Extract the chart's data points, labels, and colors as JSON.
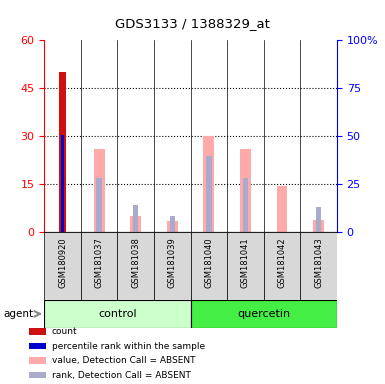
{
  "title": "GDS3133 / 1388329_at",
  "samples": [
    "GSM180920",
    "GSM181037",
    "GSM181038",
    "GSM181039",
    "GSM181040",
    "GSM181041",
    "GSM181042",
    "GSM181043"
  ],
  "count_values": [
    50,
    0,
    0,
    0,
    0,
    0,
    0,
    0
  ],
  "percentile_rank": [
    30.5,
    0,
    0,
    0,
    0,
    0,
    0,
    0
  ],
  "value_absent": [
    0,
    26,
    5,
    3.5,
    30,
    26,
    14.5,
    4
  ],
  "rank_absent": [
    0,
    17,
    8.5,
    5,
    24,
    17,
    0,
    8
  ],
  "ylim": [
    0,
    60
  ],
  "yticks_left": [
    0,
    15,
    30,
    45,
    60
  ],
  "yticks_right": [
    0,
    25,
    50,
    75,
    100
  ],
  "color_count": "#cc1111",
  "color_percentile": "#0000cc",
  "color_value_absent": "#ffaaaa",
  "color_rank_absent": "#aaaacc",
  "color_ctrl_bg": "#ccffcc",
  "color_quer_bg": "#44ee44",
  "color_sample_bg": "#d8d8d8",
  "agent_label": "agent"
}
